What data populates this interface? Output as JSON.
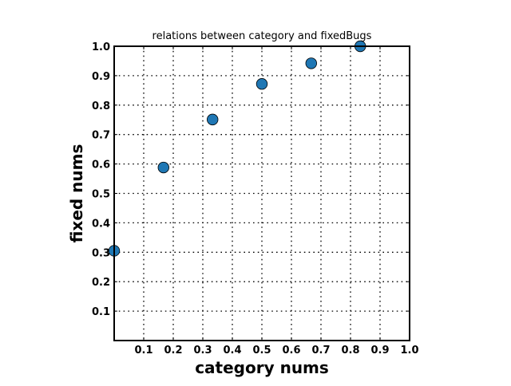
{
  "chart_data": {
    "type": "scatter",
    "title": "relations between category and fixedBugs",
    "xlabel": "category nums",
    "ylabel": "fixed nums",
    "xlim": [
      0,
      1.0
    ],
    "ylim": [
      0,
      1.0
    ],
    "xticks": [
      "0.1",
      "0.2",
      "0.3",
      "0.4",
      "0.5",
      "0.6",
      "0.7",
      "0.8",
      "0.9",
      "1.0"
    ],
    "yticks": [
      "0.1",
      "0.2",
      "0.3",
      "0.4",
      "0.5",
      "0.6",
      "0.7",
      "0.8",
      "0.9",
      "1.0"
    ],
    "grid": true,
    "legend": "none",
    "marker_color": "#1f77b4",
    "points": [
      {
        "x": 0.0,
        "y": 0.305
      },
      {
        "x": 0.167,
        "y": 0.588
      },
      {
        "x": 0.333,
        "y": 0.751
      },
      {
        "x": 0.5,
        "y": 0.872
      },
      {
        "x": 0.667,
        "y": 0.942
      },
      {
        "x": 0.833,
        "y": 1.0
      }
    ]
  }
}
